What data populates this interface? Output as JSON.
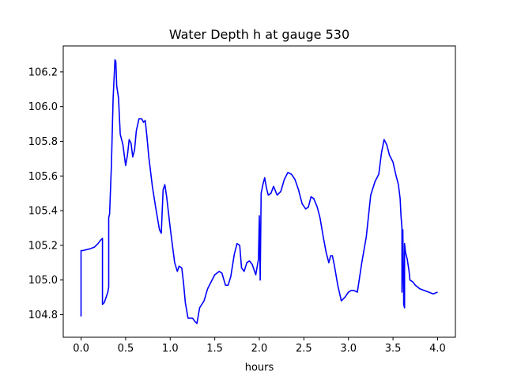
{
  "chart_data": {
    "type": "line",
    "title": "Water Depth h at gauge 530",
    "xlabel": "hours",
    "ylabel": "",
    "xlim": [
      -0.2,
      4.2
    ],
    "ylim": [
      104.67,
      106.35
    ],
    "grid": false,
    "xticks": [
      0.0,
      0.5,
      1.0,
      1.5,
      2.0,
      2.5,
      3.0,
      3.5,
      4.0
    ],
    "xtick_labels": [
      "0.0",
      "0.5",
      "1.0",
      "1.5",
      "2.0",
      "2.5",
      "3.0",
      "3.5",
      "4.0"
    ],
    "yticks": [
      104.8,
      105.0,
      105.2,
      105.4,
      105.6,
      105.8,
      106.0,
      106.2
    ],
    "ytick_labels": [
      "104.8",
      "105.0",
      "105.2",
      "105.4",
      "105.6",
      "105.8",
      "106.0",
      "106.2"
    ],
    "series": [
      {
        "color": "#0000ff",
        "x": [
          0.0,
          0.0,
          0.02,
          0.1,
          0.15,
          0.19,
          0.22,
          0.24,
          0.24,
          0.26,
          0.3,
          0.31,
          0.31,
          0.32,
          0.34,
          0.36,
          0.38,
          0.39,
          0.4,
          0.42,
          0.44,
          0.47,
          0.5,
          0.52,
          0.54,
          0.56,
          0.58,
          0.6,
          0.62,
          0.65,
          0.68,
          0.7,
          0.72,
          0.74,
          0.76,
          0.8,
          0.84,
          0.88,
          0.9,
          0.92,
          0.94,
          0.96,
          1.0,
          1.05,
          1.08,
          1.1,
          1.13,
          1.15,
          1.17,
          1.2,
          1.22,
          1.25,
          1.28,
          1.3,
          1.33,
          1.38,
          1.42,
          1.46,
          1.5,
          1.55,
          1.58,
          1.62,
          1.65,
          1.68,
          1.72,
          1.75,
          1.78,
          1.8,
          1.83,
          1.86,
          1.89,
          1.92,
          1.96,
          1.99,
          2.0,
          2.01,
          2.02,
          2.04,
          2.06,
          2.08,
          2.1,
          2.13,
          2.16,
          2.2,
          2.24,
          2.28,
          2.32,
          2.36,
          2.4,
          2.44,
          2.48,
          2.52,
          2.55,
          2.58,
          2.61,
          2.65,
          2.68,
          2.72,
          2.75,
          2.78,
          2.8,
          2.82,
          2.84,
          2.88,
          2.92,
          2.96,
          3.0,
          3.03,
          3.06,
          3.1,
          3.15,
          3.2,
          3.25,
          3.3,
          3.34,
          3.37,
          3.4,
          3.43,
          3.46,
          3.5,
          3.53,
          3.56,
          3.58,
          3.59,
          3.6,
          3.6,
          3.61,
          3.62,
          3.62,
          3.63,
          3.63,
          3.64,
          3.66,
          3.68,
          3.69,
          3.72,
          3.75,
          3.8,
          3.85,
          3.9,
          3.95,
          4.0
        ],
        "y": [
          104.79,
          105.17,
          105.17,
          105.18,
          105.19,
          105.21,
          105.23,
          105.24,
          104.86,
          104.87,
          104.93,
          104.96,
          105.36,
          105.38,
          105.66,
          106.05,
          106.27,
          106.26,
          106.12,
          106.05,
          105.84,
          105.78,
          105.66,
          105.72,
          105.81,
          105.79,
          105.71,
          105.75,
          105.86,
          105.93,
          105.93,
          105.91,
          105.92,
          105.82,
          105.71,
          105.54,
          105.41,
          105.29,
          105.27,
          105.52,
          105.55,
          105.48,
          105.3,
          105.1,
          105.05,
          105.08,
          105.07,
          104.98,
          104.87,
          104.78,
          104.78,
          104.78,
          104.76,
          104.75,
          104.84,
          104.88,
          104.95,
          104.99,
          105.03,
          105.05,
          105.04,
          104.97,
          104.97,
          105.02,
          105.15,
          105.21,
          105.2,
          105.07,
          105.05,
          105.1,
          105.11,
          105.09,
          105.03,
          105.12,
          105.37,
          105.0,
          105.5,
          105.55,
          105.59,
          105.53,
          105.49,
          105.5,
          105.54,
          105.49,
          105.51,
          105.58,
          105.62,
          105.61,
          105.58,
          105.52,
          105.44,
          105.41,
          105.42,
          105.48,
          105.47,
          105.42,
          105.36,
          105.24,
          105.16,
          105.1,
          105.14,
          105.14,
          105.09,
          104.97,
          104.88,
          104.9,
          104.93,
          104.94,
          104.94,
          104.93,
          105.1,
          105.25,
          105.49,
          105.57,
          105.61,
          105.73,
          105.81,
          105.78,
          105.72,
          105.68,
          105.61,
          105.55,
          105.47,
          105.37,
          105.3,
          104.93,
          105.29,
          104.89,
          104.86,
          104.84,
          105.21,
          105.16,
          105.12,
          105.05,
          105.0,
          104.99,
          104.97,
          104.95,
          104.94,
          104.93,
          104.92,
          104.93
        ]
      }
    ]
  }
}
